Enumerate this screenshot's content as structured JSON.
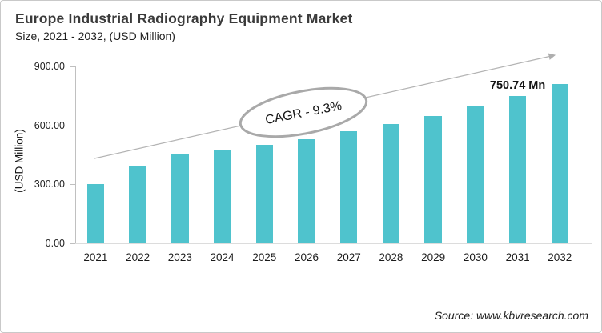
{
  "header": {
    "title": "Europe Industrial Radiography Equipment Market",
    "subtitle": "Size, 2021 - 2032, (USD Million)"
  },
  "chart_data": {
    "type": "bar",
    "title": "Europe Industrial Radiography Equipment Market",
    "subtitle": "Size, 2021 - 2032, (USD Million)",
    "categories": [
      "2021",
      "2022",
      "2023",
      "2024",
      "2025",
      "2026",
      "2027",
      "2028",
      "2029",
      "2030",
      "2031",
      "2032"
    ],
    "values": [
      300,
      391,
      451,
      476,
      502,
      531,
      570,
      608,
      649,
      696,
      750.74,
      812
    ],
    "xlabel": "",
    "ylabel": "(USD Million)",
    "ylim": [
      0,
      900
    ],
    "ytick_values": [
      0,
      300,
      600,
      900
    ],
    "ytick_labels": [
      "0.00",
      "300.00",
      "600.00",
      "900.00"
    ],
    "grid": false,
    "legend": "none",
    "bar_color": "#4FC3CD",
    "annotations": {
      "cagr_label": "CAGR - 9.3%",
      "value_label": "750.74 Mn",
      "value_label_category": "2031",
      "trend_arrow": "rising left-to-right"
    }
  },
  "source": {
    "text": "Source: www.kbvresearch.com"
  },
  "colors": {
    "bar": "#4FC3CD",
    "axis": "#C0C0C0",
    "arrow": "#B3B3B3",
    "ellipse_stroke": "#A9A9A9",
    "title_text": "#3A3A3A",
    "body_text": "#1F1F1F"
  }
}
